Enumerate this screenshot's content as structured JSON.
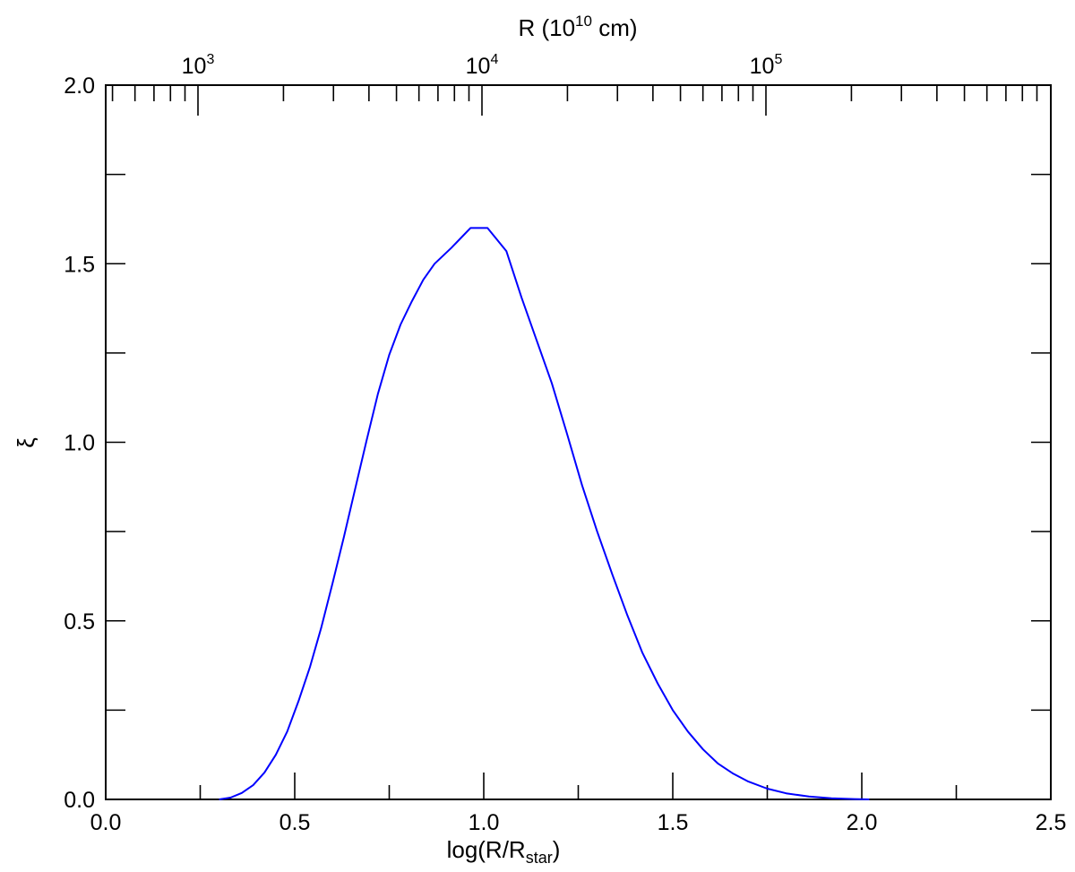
{
  "chart_data": {
    "type": "line",
    "title": "",
    "xlabel_main": "log(R/R",
    "xlabel_sub": "star",
    "xlabel_close": ")",
    "ylabel": "ξ",
    "x2label_main": "R (10",
    "x2label_sup": "10",
    "x2label_close": " cm)",
    "xlim": [
      0.0,
      2.5
    ],
    "ylim": [
      0.0,
      2.0
    ],
    "grid": false,
    "x_tick_labels": [
      "0.0",
      "0.5",
      "1.0",
      "1.5",
      "2.0",
      "2.5"
    ],
    "y_tick_labels": [
      "0.0",
      "0.5",
      "1.0",
      "1.5",
      "2.0"
    ],
    "top_axis": {
      "scale": "log",
      "major_ticks": [
        {
          "base": "10",
          "exp": "3",
          "value": 1000
        },
        {
          "base": "10",
          "exp": "4",
          "value": 10000
        },
        {
          "base": "10",
          "exp": "5",
          "value": 100000
        }
      ]
    },
    "series": [
      {
        "color": "#0000ff",
        "x": [
          0.3,
          0.33,
          0.36,
          0.39,
          0.42,
          0.45,
          0.48,
          0.51,
          0.54,
          0.57,
          0.6,
          0.63,
          0.66,
          0.69,
          0.72,
          0.75,
          0.78,
          0.81,
          0.84,
          0.87,
          0.915,
          0.965,
          1.01,
          1.06,
          1.1,
          1.14,
          1.18,
          1.22,
          1.26,
          1.3,
          1.34,
          1.38,
          1.42,
          1.46,
          1.5,
          1.54,
          1.58,
          1.62,
          1.66,
          1.7,
          1.75,
          1.8,
          1.86,
          1.92,
          1.98,
          2.02
        ],
        "y": [
          0.0,
          0.005,
          0.018,
          0.04,
          0.075,
          0.125,
          0.19,
          0.275,
          0.37,
          0.48,
          0.605,
          0.735,
          0.87,
          1.005,
          1.135,
          1.245,
          1.33,
          1.395,
          1.455,
          1.5,
          1.545,
          1.6,
          1.6,
          1.535,
          1.405,
          1.285,
          1.165,
          1.025,
          0.88,
          0.75,
          0.63,
          0.515,
          0.41,
          0.325,
          0.25,
          0.19,
          0.14,
          0.1,
          0.072,
          0.05,
          0.03,
          0.017,
          0.008,
          0.003,
          0.001,
          0.0
        ]
      }
    ]
  }
}
